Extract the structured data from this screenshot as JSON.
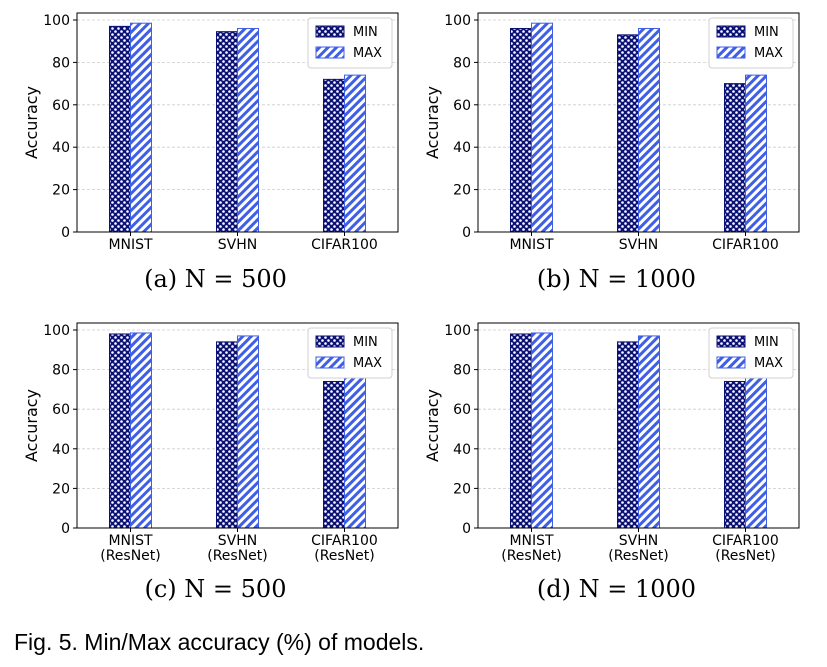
{
  "figure": {
    "caption": "Fig. 5. Min/Max accuracy (%) of models."
  },
  "legend": {
    "min_label": "MIN",
    "max_label": "MAX"
  },
  "colors": {
    "min_fill": "#0c1275",
    "max_fill": "#3f5fe6",
    "stripe_bg": "#ffffff",
    "dot": "#ffffff"
  },
  "chart_data": [
    {
      "type": "bar",
      "subcaption": "(a) N = 500",
      "categories": [
        "MNIST",
        "SVHN",
        "CIFAR100"
      ],
      "series": [
        {
          "name": "MIN",
          "values": [
            97,
            94.5,
            72
          ]
        },
        {
          "name": "MAX",
          "values": [
            98.5,
            96,
            74
          ]
        }
      ],
      "ylabel": "Accuracy",
      "ylim": [
        0,
        100
      ],
      "yticks": [
        0,
        20,
        40,
        60,
        80,
        100
      ],
      "grid": "y",
      "legend": "top-right"
    },
    {
      "type": "bar",
      "subcaption": "(b) N = 1000",
      "categories": [
        "MNIST",
        "SVHN",
        "CIFAR100"
      ],
      "series": [
        {
          "name": "MIN",
          "values": [
            96,
            93,
            70
          ]
        },
        {
          "name": "MAX",
          "values": [
            98.5,
            96,
            74
          ]
        }
      ],
      "ylabel": "Accuracy",
      "ylim": [
        0,
        100
      ],
      "yticks": [
        0,
        20,
        40,
        60,
        80,
        100
      ],
      "grid": "y",
      "legend": "top-right"
    },
    {
      "type": "bar",
      "subcaption": "(c) N = 500",
      "categories": [
        "MNIST\n(ResNet)",
        "SVHN\n(ResNet)",
        "CIFAR100\n(ResNet)"
      ],
      "series": [
        {
          "name": "MIN",
          "values": [
            98,
            94,
            74
          ]
        },
        {
          "name": "MAX",
          "values": [
            98.5,
            97,
            76.5
          ]
        }
      ],
      "ylabel": "Accuracy",
      "ylim": [
        0,
        100
      ],
      "yticks": [
        0,
        20,
        40,
        60,
        80,
        100
      ],
      "grid": "y",
      "legend": "top-right"
    },
    {
      "type": "bar",
      "subcaption": "(d) N = 1000",
      "categories": [
        "MNIST\n(ResNet)",
        "SVHN\n(ResNet)",
        "CIFAR100\n(ResNet)"
      ],
      "series": [
        {
          "name": "MIN",
          "values": [
            98,
            94,
            74
          ]
        },
        {
          "name": "MAX",
          "values": [
            98.5,
            97,
            76.5
          ]
        }
      ],
      "ylabel": "Accuracy",
      "ylim": [
        0,
        100
      ],
      "yticks": [
        0,
        20,
        40,
        60,
        80,
        100
      ],
      "grid": "y",
      "legend": "top-right"
    }
  ]
}
